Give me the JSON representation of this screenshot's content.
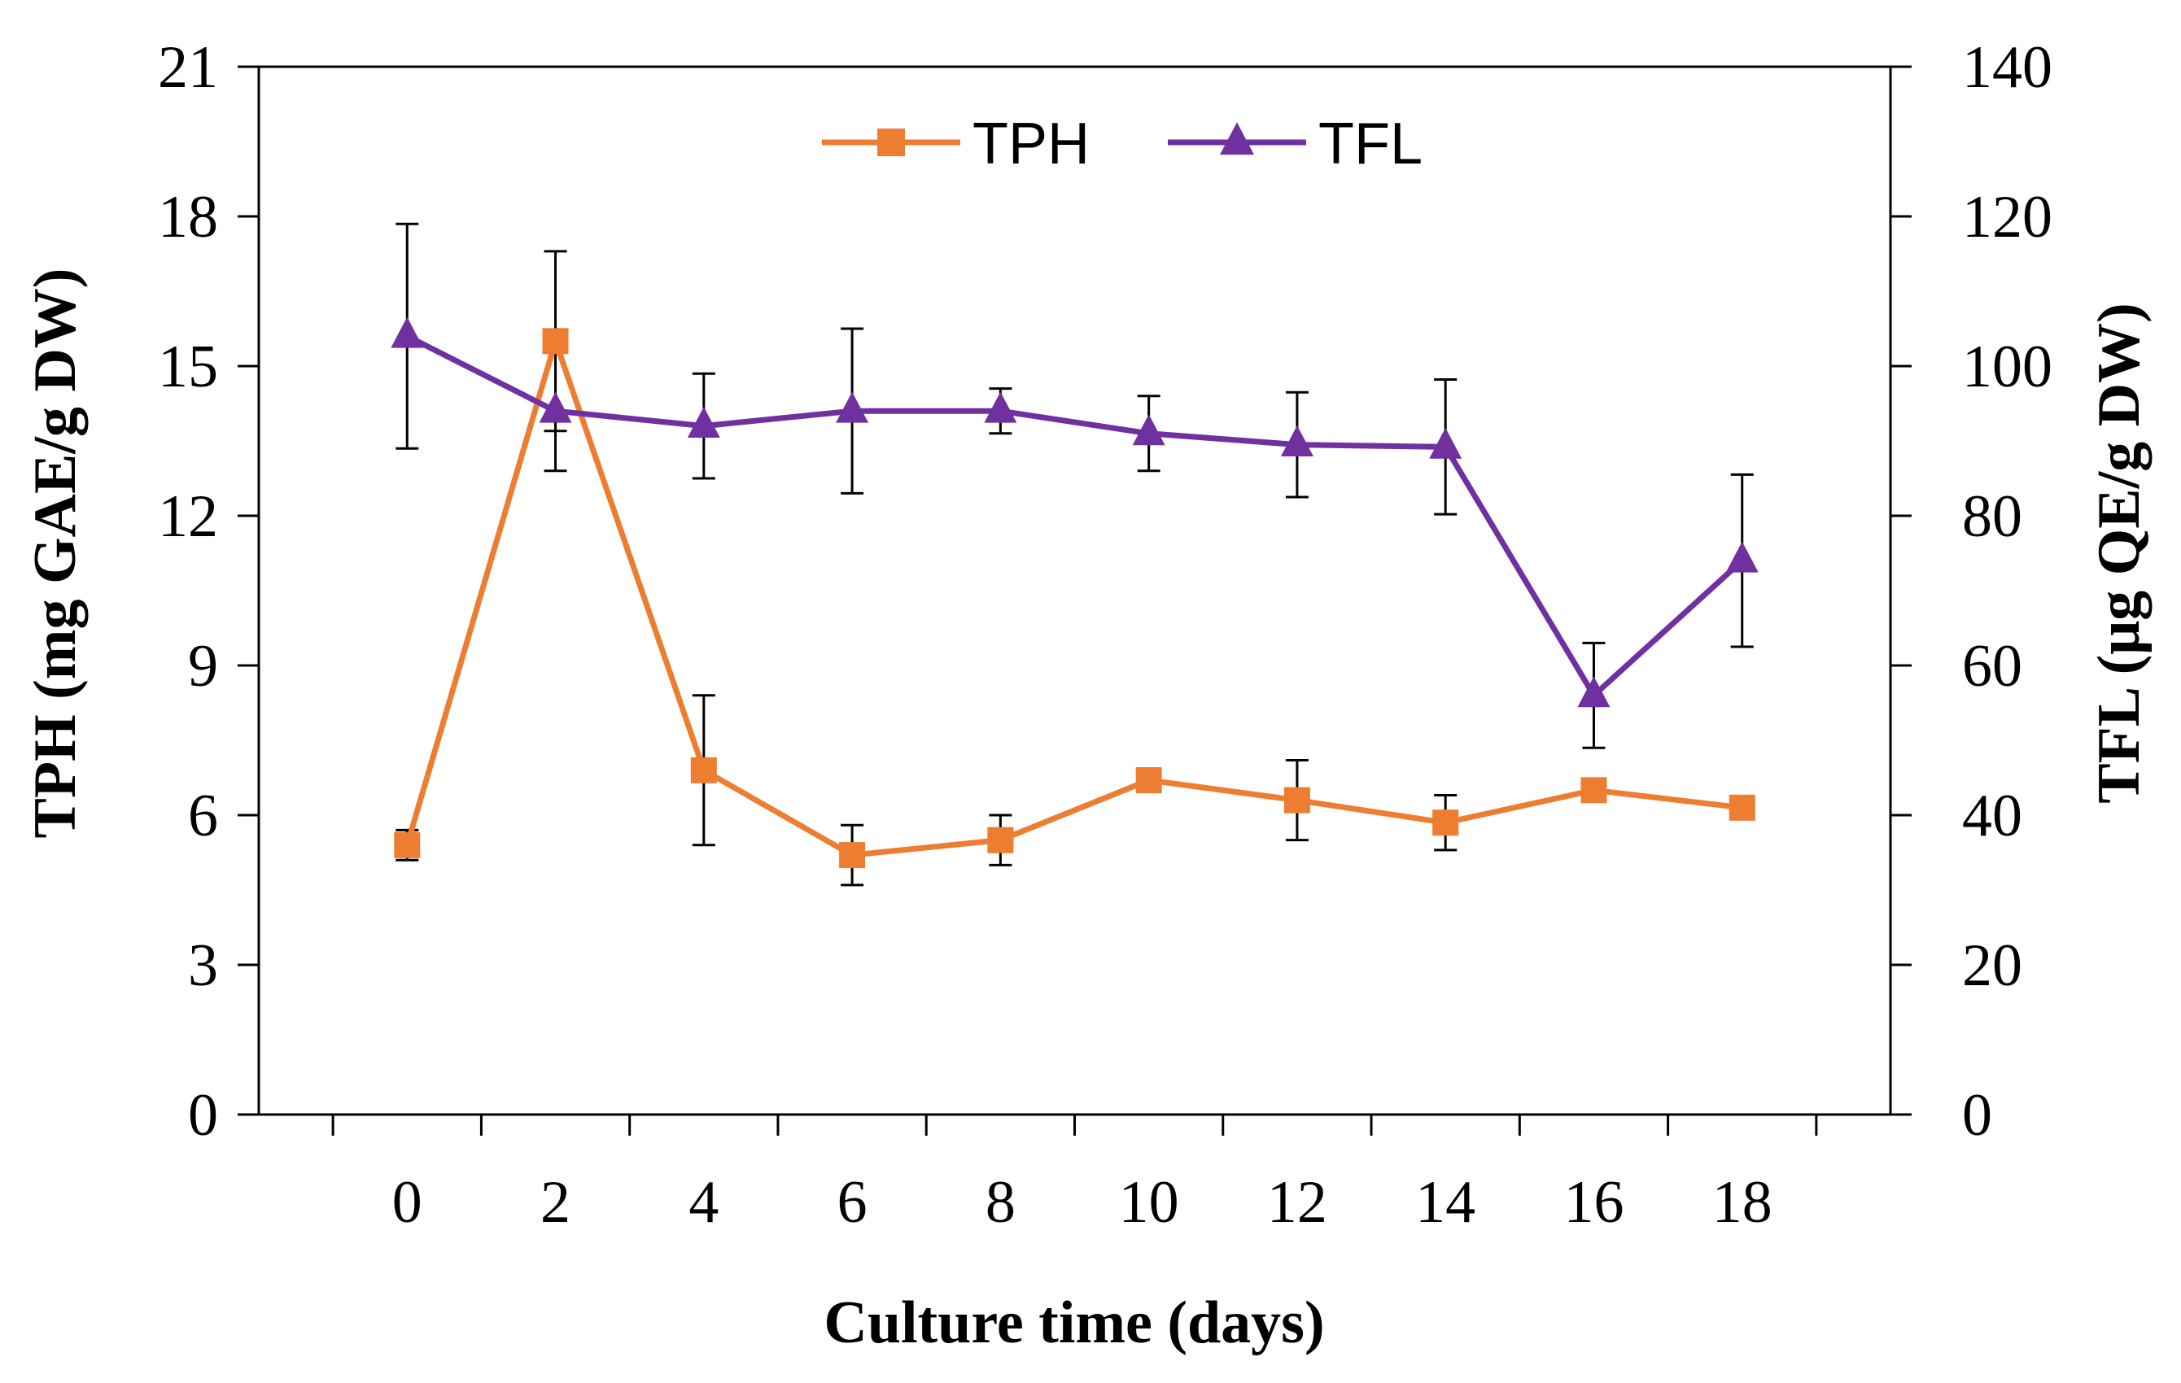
{
  "chart_data": {
    "type": "line",
    "title": "",
    "xlabel": "Culture time (days)",
    "ylabel_left": "TPH (mg GAE/g DW)",
    "ylabel_right": "TFL (μg QE/g DW)",
    "x": [
      0,
      2,
      4,
      6,
      8,
      10,
      12,
      14,
      16,
      18
    ],
    "x_tick_labels": [
      "0",
      "2",
      "4",
      "6",
      "8",
      "10",
      "12",
      "14",
      "16",
      "18"
    ],
    "ylim_left": [
      0,
      21
    ],
    "ylim_right": [
      0,
      140
    ],
    "y_left_ticks": [
      "0",
      "3",
      "6",
      "9",
      "12",
      "15",
      "18",
      "21"
    ],
    "y_right_ticks": [
      "0",
      "20",
      "40",
      "60",
      "80",
      "100",
      "120",
      "140"
    ],
    "grid": false,
    "legend_position": "top-center",
    "series": [
      {
        "name": "TPH",
        "axis": "left",
        "marker": "square",
        "color": "#ED7D31",
        "values": [
          5.4,
          15.5,
          6.9,
          5.2,
          5.5,
          6.7,
          6.3,
          5.85,
          6.5,
          6.15
        ],
        "errors": [
          0.3,
          1.8,
          1.5,
          0.6,
          0.5,
          0.15,
          0.8,
          0.55,
          0.2,
          0.15
        ]
      },
      {
        "name": "TFL",
        "axis": "right",
        "marker": "triangle",
        "color": "#7030A0",
        "values": [
          104,
          94,
          92,
          94,
          94,
          91,
          89.5,
          89.2,
          56,
          74
        ],
        "errors": [
          15,
          8,
          7,
          11,
          3,
          5,
          7,
          9,
          7,
          11.5
        ]
      }
    ]
  }
}
